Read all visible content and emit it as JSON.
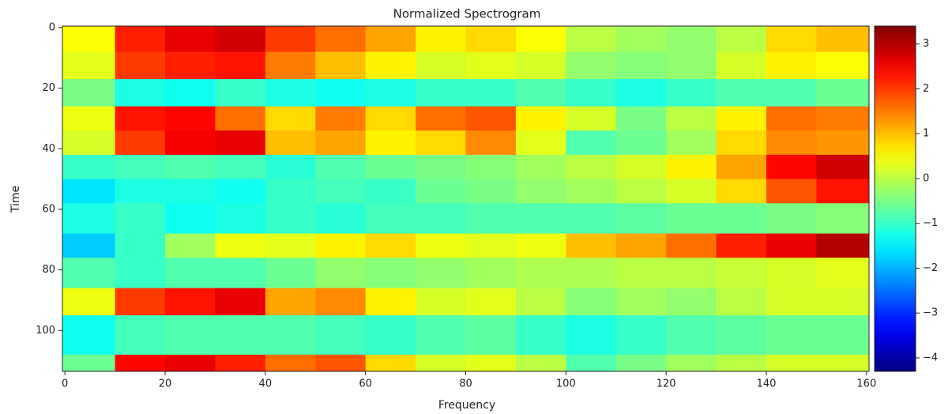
{
  "chart_data": {
    "type": "heatmap",
    "title": "Normalized Spectrogram",
    "x_label": "Frequency",
    "y_label": "Time",
    "x_edges": [
      -0.5,
      10,
      20,
      30,
      40,
      50,
      60,
      70,
      80,
      90,
      100,
      110,
      120,
      130,
      140,
      150,
      160.5
    ],
    "y_edges": [
      -0.5,
      8,
      17,
      26,
      34,
      42,
      50,
      58,
      68,
      76,
      86,
      95,
      108,
      113.5
    ],
    "values": [
      [
        0.5,
        2.2,
        2.6,
        2.8,
        2.0,
        1.6,
        1.2,
        0.6,
        0.8,
        0.5,
        0.0,
        -0.2,
        -0.3,
        0.0,
        0.8,
        1.0
      ],
      [
        0.3,
        2.0,
        2.2,
        2.3,
        1.5,
        1.0,
        0.6,
        0.2,
        0.3,
        0.2,
        -0.3,
        -0.4,
        -0.3,
        0.2,
        0.6,
        0.5
      ],
      [
        -0.5,
        -1.2,
        -1.3,
        -1.0,
        -1.2,
        -1.3,
        -1.2,
        -1.0,
        -1.0,
        -0.8,
        -1.0,
        -1.2,
        -1.0,
        -0.8,
        -0.8,
        -0.6
      ],
      [
        0.4,
        2.3,
        2.4,
        1.6,
        0.8,
        1.5,
        0.8,
        1.6,
        1.8,
        0.6,
        0.2,
        -0.5,
        0.0,
        0.6,
        1.6,
        1.5
      ],
      [
        0.2,
        2.0,
        2.5,
        2.6,
        1.0,
        1.2,
        0.6,
        0.8,
        1.4,
        0.3,
        -0.8,
        -0.6,
        -0.2,
        0.8,
        1.4,
        1.3
      ],
      [
        -1.0,
        -0.9,
        -0.8,
        -0.9,
        -1.1,
        -0.8,
        -0.6,
        -0.5,
        -0.4,
        -0.2,
        0.0,
        0.2,
        0.6,
        1.2,
        2.4,
        2.8
      ],
      [
        -1.6,
        -1.2,
        -1.2,
        -1.3,
        -1.0,
        -0.9,
        -1.0,
        -0.6,
        -0.5,
        -0.3,
        -0.2,
        0.0,
        0.2,
        0.8,
        1.8,
        2.3
      ],
      [
        -1.2,
        -1.0,
        -1.3,
        -1.2,
        -1.0,
        -1.1,
        -0.9,
        -0.9,
        -0.8,
        -0.8,
        -0.8,
        -0.7,
        -0.6,
        -0.6,
        -0.5,
        -0.4
      ],
      [
        -1.8,
        -1.0,
        -0.2,
        0.4,
        0.3,
        0.6,
        0.8,
        0.4,
        0.3,
        0.4,
        1.0,
        1.2,
        1.6,
        2.2,
        2.6,
        3.0
      ],
      [
        -0.8,
        -1.0,
        -0.8,
        -0.8,
        -0.6,
        -0.3,
        -0.4,
        -0.3,
        -0.2,
        -0.1,
        -0.1,
        0.0,
        0.0,
        0.1,
        0.2,
        0.3
      ],
      [
        0.4,
        2.0,
        2.3,
        2.6,
        1.2,
        1.4,
        0.6,
        0.2,
        0.3,
        0.0,
        -0.4,
        -0.2,
        -0.3,
        0.0,
        0.2,
        0.2
      ],
      [
        -1.3,
        -0.9,
        -0.8,
        -0.8,
        -0.8,
        -0.9,
        -1.0,
        -0.8,
        -0.7,
        -1.0,
        -1.2,
        -1.0,
        -0.8,
        -0.7,
        -0.6,
        -0.6
      ],
      [
        -0.6,
        2.4,
        2.6,
        2.2,
        1.6,
        1.8,
        0.8,
        0.2,
        0.3,
        0.0,
        -0.8,
        -0.5,
        -0.2,
        0.0,
        0.2,
        0.2
      ]
    ],
    "xlim": [
      -0.5,
      160.5
    ],
    "xticks": [
      0,
      20,
      40,
      60,
      80,
      100,
      120,
      140,
      160
    ],
    "ylim": [
      -0.5,
      113.5
    ],
    "y_inverted": true,
    "yticks": [
      0,
      20,
      40,
      60,
      80,
      100
    ],
    "colormap": "jet",
    "clim": [
      -4.3,
      3.4
    ],
    "colorbar_ticks": [
      {
        "value": -4,
        "label": "−4"
      },
      {
        "value": -3,
        "label": "−3"
      },
      {
        "value": -2,
        "label": "−2"
      },
      {
        "value": -1,
        "label": "−1"
      },
      0,
      1,
      2,
      3
    ]
  }
}
